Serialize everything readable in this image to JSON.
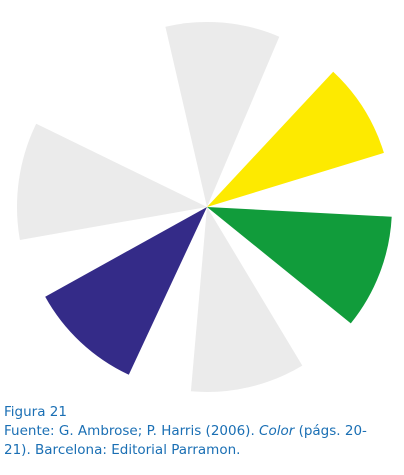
{
  "wheel": {
    "segments": [
      {
        "name": "segment-top",
        "color": "#ebebeb"
      },
      {
        "name": "segment-top-right",
        "color": "#fdea00"
      },
      {
        "name": "segment-right",
        "color": "#119c3b"
      },
      {
        "name": "segment-bottom",
        "color": "#ebebeb"
      },
      {
        "name": "segment-bottom-left",
        "color": "#342b88"
      },
      {
        "name": "segment-left",
        "color": "#ebebeb"
      }
    ]
  },
  "caption": {
    "label": "Figura 21",
    "source_prefix": "Fuente: G. Ambrose; P. Harris (2006). ",
    "source_title": "Color",
    "source_suffix_1": " (págs. 20-",
    "source_line2": "21). Barcelona: Editorial Parramon."
  }
}
